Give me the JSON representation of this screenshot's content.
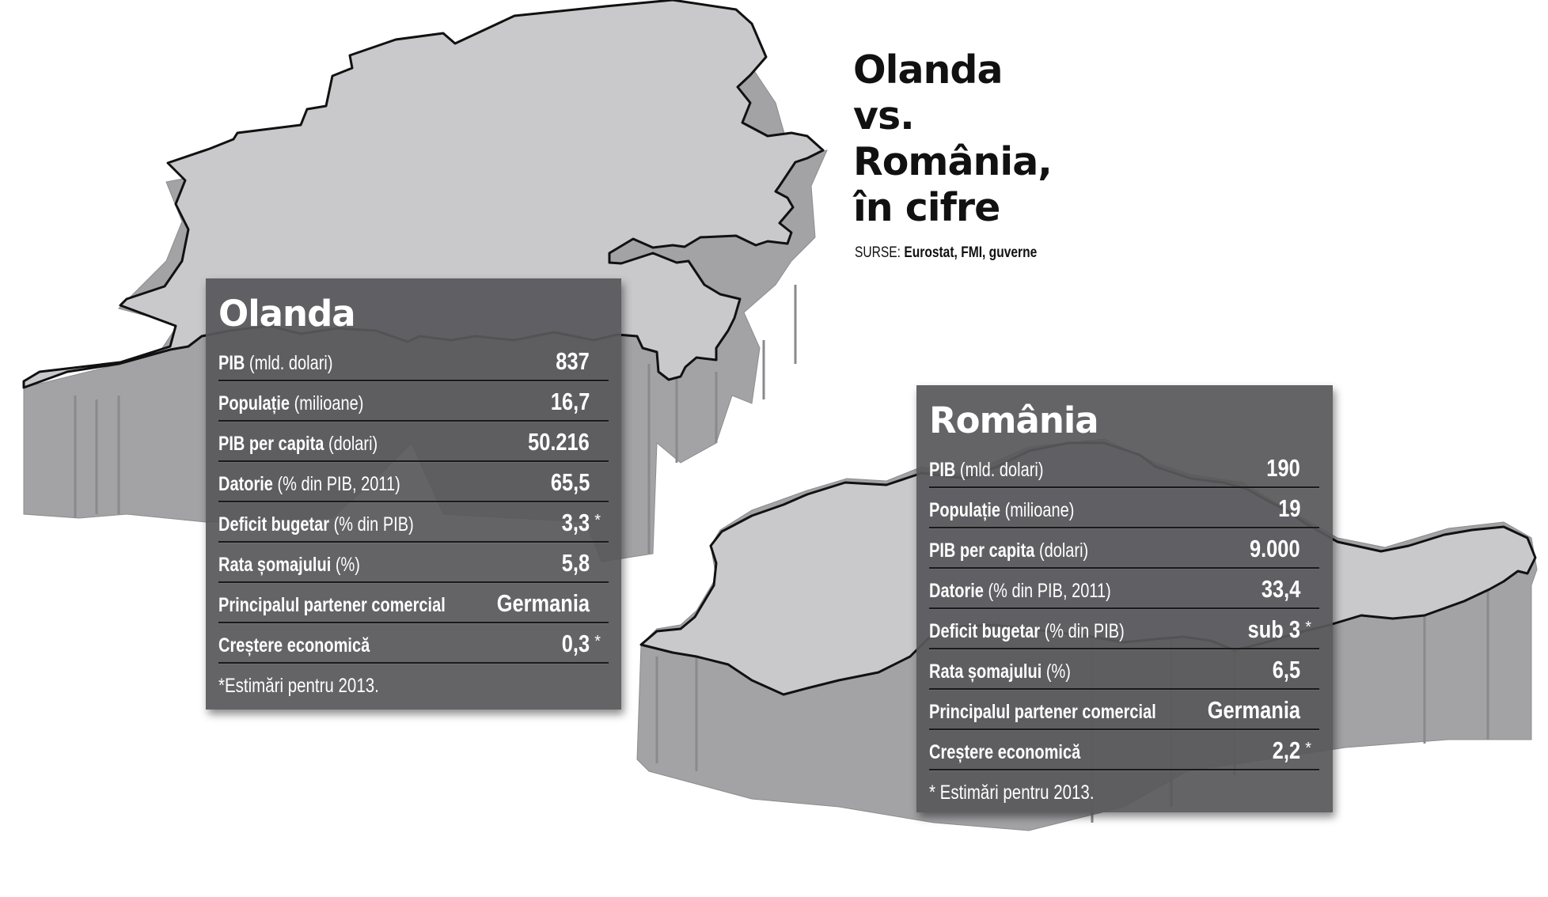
{
  "headline": {
    "lines": [
      "Olanda",
      "vs.",
      "România,",
      "în cifre"
    ]
  },
  "sources": {
    "prefix": "SURSE:",
    "names": "Eurostat, FMI, guverne"
  },
  "colors": {
    "map_top": "#c9c9cb",
    "map_side": "#a3a3a6",
    "panel_bg": "#58585b",
    "text": "#ffffff"
  },
  "olanda": {
    "title": "Olanda",
    "rows": [
      {
        "bold": "PIB",
        "rest": " (mld. dolari)",
        "value": "837",
        "star": ""
      },
      {
        "bold": "Populație",
        "rest": " (milioane)",
        "value": "16,7",
        "star": ""
      },
      {
        "bold": "PIB per capita",
        "rest": " (dolari)",
        "value": "50.216",
        "star": ""
      },
      {
        "bold": "Datorie",
        "rest": " (% din PIB, 2011)",
        "value": "65,5",
        "star": ""
      },
      {
        "bold": "Deficit bugetar",
        "rest": " (% din PIB)",
        "value": "3,3",
        "star": "*"
      },
      {
        "bold": "Rata șomajului",
        "rest": " (%)",
        "value": "5,8",
        "star": ""
      },
      {
        "bold": "Principalul partener comercial",
        "rest": "",
        "value": "Germania",
        "star": ""
      },
      {
        "bold": "Creștere economică",
        "rest": "",
        "value": "0,3",
        "star": "*"
      }
    ],
    "note": "*Estimări pentru 2013."
  },
  "romania": {
    "title": "România",
    "rows": [
      {
        "bold": "PIB",
        "rest": " (mld. dolari)",
        "value": "190",
        "star": ""
      },
      {
        "bold": "Populație",
        "rest": " (milioane)",
        "value": "19",
        "star": ""
      },
      {
        "bold": "PIB per capita",
        "rest": " (dolari)",
        "value": "9.000",
        "star": ""
      },
      {
        "bold": "Datorie",
        "rest": " (% din PIB, 2011)",
        "value": "33,4",
        "star": ""
      },
      {
        "bold": "Deficit bugetar",
        "rest": " (% din PIB)",
        "value": "sub 3",
        "star": "*"
      },
      {
        "bold": "Rata șomajului",
        "rest": " (%)",
        "value": "6,5",
        "star": ""
      },
      {
        "bold": "Principalul partener comercial",
        "rest": "",
        "value": "Germania",
        "star": ""
      },
      {
        "bold": "Creștere economică",
        "rest": "",
        "value": "2,2",
        "star": "*"
      }
    ],
    "note": "* Estimări pentru 2013."
  }
}
